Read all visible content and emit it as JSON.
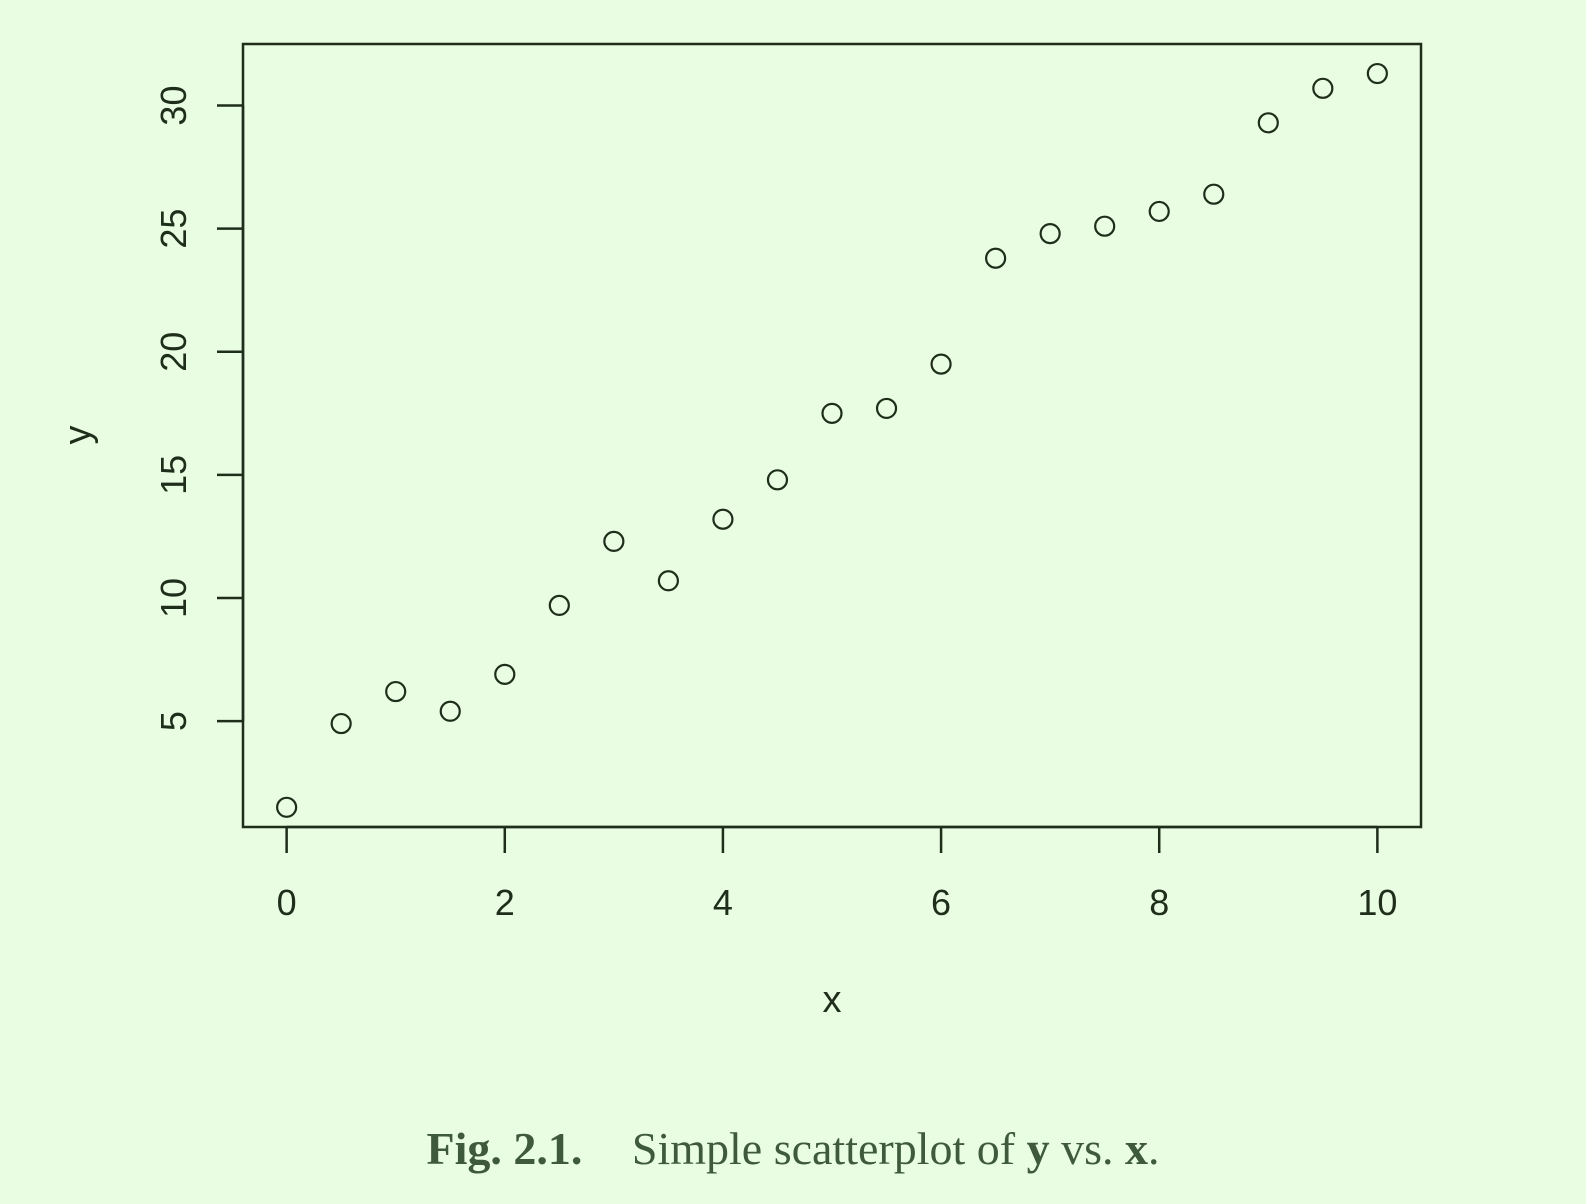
{
  "chart_data": {
    "type": "scatter",
    "title": "",
    "xlabel": "x",
    "ylabel": "y",
    "xlim": [
      -0.4,
      10.4
    ],
    "ylim": [
      0.7,
      32.5
    ],
    "xticks": [
      0,
      2,
      4,
      6,
      8,
      10
    ],
    "yticks": [
      5,
      10,
      15,
      20,
      25,
      30
    ],
    "grid": false,
    "legend": "none",
    "marker": "open-circle",
    "x": [
      0,
      0.5,
      1,
      1.5,
      2,
      2.5,
      3,
      3.5,
      4,
      4.5,
      5,
      5.5,
      6,
      6.5,
      7,
      7.5,
      8,
      8.5,
      9,
      9.5,
      10
    ],
    "y": [
      1.5,
      4.9,
      6.2,
      5.4,
      6.9,
      9.7,
      12.3,
      10.7,
      13.2,
      14.8,
      17.5,
      17.7,
      19.5,
      23.8,
      24.8,
      25.1,
      25.7,
      26.4,
      29.3,
      30.7,
      31.3
    ]
  },
  "caption": {
    "label": "Fig. 2.1.",
    "text_before": "Simple scatterplot of",
    "var_y": "y",
    "text_middle": "vs.",
    "var_x": "x",
    "text_end": "."
  },
  "colors": {
    "background": "#e8fde1",
    "ink": "#1f2e1b",
    "caption": "#3f5a3b"
  }
}
